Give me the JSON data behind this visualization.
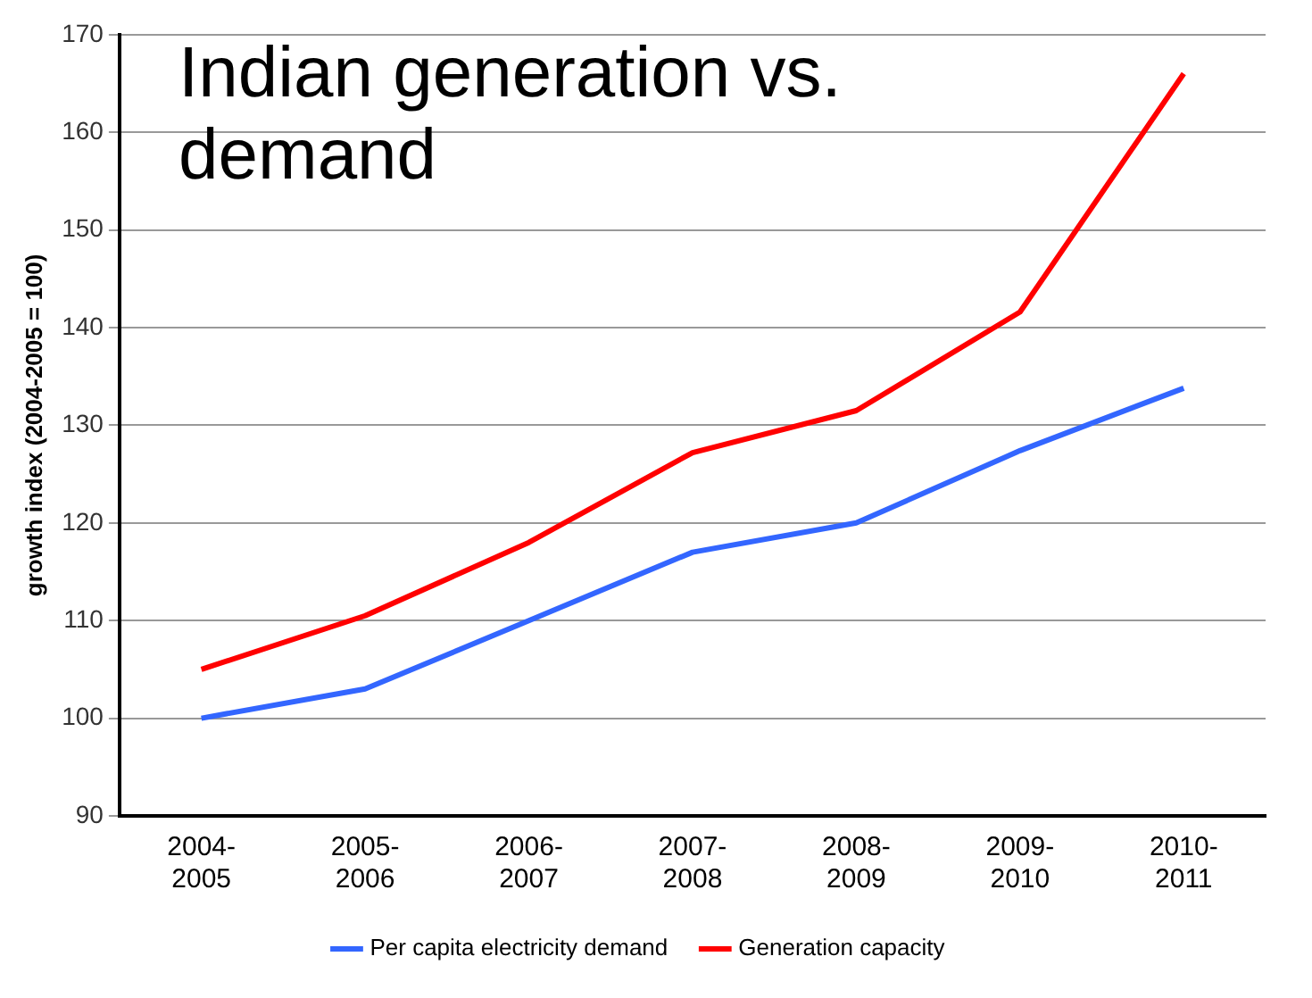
{
  "chart_data": {
    "type": "line",
    "title": "Indian generation vs. demand",
    "ylabel": "growth index (2004-2005 = 100)",
    "categories": [
      "2004-\n2005",
      "2005-\n2006",
      "2006-\n2007",
      "2007-\n2008",
      "2008-\n2009",
      "2009-\n2010",
      "2010-\n2011"
    ],
    "series": [
      {
        "name": "Per capita electricity demand",
        "color": "#3366ff",
        "values": [
          100,
          103,
          110,
          117,
          120,
          127.4,
          133.8
        ]
      },
      {
        "name": "Generation capacity",
        "color": "#ff0000",
        "values": [
          105,
          110.5,
          118,
          127.2,
          131.5,
          141.6,
          166
        ]
      }
    ],
    "ylim": [
      90,
      170
    ],
    "yticks": [
      90,
      100,
      110,
      120,
      130,
      140,
      150,
      160,
      170
    ],
    "grid": "y",
    "legend": "bottom",
    "marker": "none",
    "line_style": "solid"
  }
}
